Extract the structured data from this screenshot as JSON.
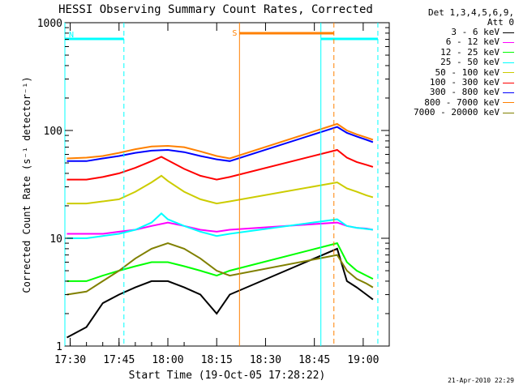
{
  "chart_data": {
    "type": "line",
    "title": "HESSI Observing Summary Count Rates, Corrected",
    "xlabel": "Start Time (19-Oct-05 17:28:22)",
    "ylabel": "Corrected Count Rate (s⁻¹ detector⁻¹)",
    "yscale": "log",
    "ylim": [
      1,
      1000
    ],
    "y_ticks": [
      1,
      10,
      100,
      1000
    ],
    "y_tick_labels": [
      "1",
      "10",
      "100",
      "1000"
    ],
    "xlim": [
      "17:28:22",
      "19:08:00"
    ],
    "x_ticks": [
      "17:30",
      "17:45",
      "18:00",
      "18:15",
      "18:30",
      "18:45",
      "19:00"
    ],
    "x_tick_labels": [
      "17:30",
      "17:45",
      "18:00",
      "18:15",
      "18:30",
      "18:45",
      "19:00"
    ],
    "legend_header": [
      "Det 1,3,4,5,6,9,",
      "Att 0"
    ],
    "legend_position": "right",
    "series": [
      {
        "name": "3 - 6 keV",
        "color": "#000000",
        "x": [
          "17:29",
          "17:35",
          "17:40",
          "17:45",
          "17:50",
          "17:55",
          "18:00",
          "18:05",
          "18:10",
          "18:15",
          "18:19",
          "18:52",
          "18:55",
          "18:58",
          "19:01",
          "19:03"
        ],
        "y": [
          1.2,
          1.5,
          2.5,
          3,
          3.5,
          4,
          4,
          3.5,
          3,
          2,
          3,
          8,
          4,
          3.5,
          3,
          2.7
        ]
      },
      {
        "name": "6 - 12 keV",
        "color": "#ff00ff",
        "x": [
          "17:29",
          "17:35",
          "17:40",
          "17:45",
          "17:50",
          "17:55",
          "18:00",
          "18:05",
          "18:10",
          "18:15",
          "18:19",
          "18:52",
          "18:55",
          "18:58",
          "19:01",
          "19:03"
        ],
        "y": [
          11,
          11,
          11,
          11.5,
          12,
          13,
          14,
          13,
          12,
          11.5,
          12,
          14,
          13,
          12.5,
          12.3,
          12
        ]
      },
      {
        "name": "12 - 25 keV",
        "color": "#00ff00",
        "x": [
          "17:29",
          "17:35",
          "17:40",
          "17:45",
          "17:50",
          "17:55",
          "18:00",
          "18:05",
          "18:10",
          "18:15",
          "18:19",
          "18:52",
          "18:55",
          "18:58",
          "19:01",
          "19:03"
        ],
        "y": [
          4,
          4,
          4.5,
          5,
          5.5,
          6,
          6,
          5.5,
          5,
          4.5,
          5,
          9,
          6,
          5,
          4.5,
          4.2
        ]
      },
      {
        "name": "25 - 50 keV",
        "color": "#00ffff",
        "x": [
          "17:29",
          "17:35",
          "17:40",
          "17:45",
          "17:50",
          "17:55",
          "17:58",
          "18:00",
          "18:05",
          "18:10",
          "18:15",
          "18:19",
          "18:52",
          "18:55",
          "18:58",
          "19:01",
          "19:03"
        ],
        "y": [
          10,
          10,
          10.5,
          11,
          12,
          14,
          17,
          15,
          13,
          11.5,
          10.5,
          11,
          15,
          13,
          12.5,
          12.2,
          12
        ]
      },
      {
        "name": "50 - 100 keV",
        "color": "#cccc00",
        "x": [
          "17:29",
          "17:35",
          "17:40",
          "17:45",
          "17:50",
          "17:55",
          "17:58",
          "18:00",
          "18:05",
          "18:10",
          "18:15",
          "18:19",
          "18:52",
          "18:55",
          "18:58",
          "19:01",
          "19:03"
        ],
        "y": [
          21,
          21,
          22,
          23,
          27,
          33,
          38,
          34,
          27,
          23,
          21,
          22,
          33,
          29,
          27,
          25,
          24
        ]
      },
      {
        "name": "100 - 300 keV",
        "color": "#ff0000",
        "x": [
          "17:29",
          "17:35",
          "17:40",
          "17:45",
          "17:50",
          "17:55",
          "17:58",
          "18:00",
          "18:05",
          "18:10",
          "18:15",
          "18:19",
          "18:52",
          "18:55",
          "18:58",
          "19:01",
          "19:03"
        ],
        "y": [
          35,
          35,
          37,
          40,
          45,
          52,
          57,
          53,
          44,
          38,
          35,
          37,
          66,
          56,
          51,
          48,
          46
        ]
      },
      {
        "name": "300 - 800 keV",
        "color": "#0000ff",
        "x": [
          "17:29",
          "17:35",
          "17:40",
          "17:45",
          "17:50",
          "17:55",
          "18:00",
          "18:05",
          "18:10",
          "18:15",
          "18:19",
          "18:52",
          "18:55",
          "18:58",
          "19:01",
          "19:03"
        ],
        "y": [
          52,
          52,
          55,
          58,
          62,
          65,
          66,
          63,
          58,
          54,
          52,
          108,
          95,
          88,
          82,
          78
        ]
      },
      {
        "name": "800 - 7000 keV",
        "color": "#ff8000",
        "x": [
          "17:29",
          "17:35",
          "17:40",
          "17:45",
          "17:50",
          "17:55",
          "18:00",
          "18:05",
          "18:10",
          "18:15",
          "18:19",
          "18:52",
          "18:55",
          "18:58",
          "19:01",
          "19:03"
        ],
        "y": [
          55,
          56,
          58,
          62,
          67,
          71,
          72,
          70,
          64,
          58,
          55,
          115,
          100,
          92,
          86,
          82
        ]
      },
      {
        "name": "7000 - 20000 keV",
        "color": "#808000",
        "x": [
          "17:29",
          "17:35",
          "17:40",
          "17:45",
          "17:50",
          "17:55",
          "18:00",
          "18:05",
          "18:10",
          "18:15",
          "18:19",
          "18:52",
          "18:55",
          "18:58",
          "19:01",
          "19:03"
        ],
        "y": [
          3,
          3.2,
          4,
          5,
          6.5,
          8,
          9,
          8,
          6.5,
          5,
          4.5,
          7,
          5,
          4.2,
          3.8,
          3.5
        ]
      }
    ],
    "annotations": [
      {
        "label": "N",
        "type": "night",
        "color": "#00ffff",
        "start": "17:28:22",
        "end": "17:46:30"
      },
      {
        "label": "",
        "type": "night",
        "color": "#00ffff",
        "start": "18:47",
        "end": "19:04:30"
      },
      {
        "label": "S",
        "type": "saa",
        "color": "#ff8000",
        "start": "18:22",
        "end": "18:51"
      }
    ]
  },
  "footer_date": "21-Apr-2010 22:29"
}
